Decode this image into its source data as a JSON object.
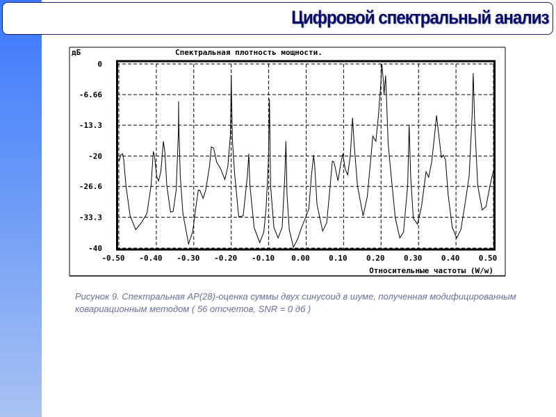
{
  "slide": {
    "title": "Цифровой спектральный анализ",
    "caption": "Рисунок 9. Спектральная АР(28)-оценка суммы двух синусоид в шуме, полученная модифицированным ковариационным методом ( 56 отсчетов, SNR = 0 дб )",
    "colors": {
      "title": "#0b0b6e",
      "stripe_top": "#3b78fc",
      "stripe_bottom": "#a9c2f2",
      "caption": "#6a6f9e"
    }
  },
  "chart_data": {
    "type": "line",
    "title": "Спектральная плотность мощности.",
    "ylabel": "дБ",
    "xlabel": "Относительные частоты (W/w)",
    "xlim": [
      -0.5,
      0.5
    ],
    "ylim": [
      -40,
      0
    ],
    "grid": true,
    "x_ticks": [
      "-0.50",
      "-0.40",
      "-0.30",
      "-0.20",
      "-0.10",
      "0.00",
      "0.10",
      "0.20",
      "0.30",
      "0.40",
      "0.50"
    ],
    "y_ticks": [
      "0",
      "-6.66",
      "-13.3",
      "-20",
      "-26.6",
      "-33.3",
      "-40"
    ],
    "y_tick_values": [
      0,
      -6.66,
      -13.3,
      -20,
      -26.6,
      -33.3,
      -40
    ],
    "series": [
      {
        "x": [
          -0.499,
          -0.495,
          -0.49,
          -0.487,
          -0.481,
          -0.47,
          -0.455,
          -0.44,
          -0.425,
          -0.414,
          -0.408,
          -0.405,
          -0.399,
          -0.394,
          -0.388,
          -0.381,
          -0.377,
          -0.372,
          -0.362,
          -0.355,
          -0.347,
          -0.341,
          -0.3405,
          -0.34,
          -0.336,
          -0.329,
          -0.314,
          -0.303,
          -0.295,
          -0.288,
          -0.284,
          -0.275,
          -0.268,
          -0.258,
          -0.253,
          -0.247,
          -0.239,
          -0.228,
          -0.217,
          -0.209,
          -0.202,
          -0.2,
          -0.197,
          -0.191,
          -0.18,
          -0.168,
          -0.157,
          -0.153,
          -0.15,
          -0.139,
          -0.124,
          -0.113,
          -0.107,
          -0.101,
          -0.098,
          -0.095,
          -0.086,
          -0.075,
          -0.064,
          -0.057,
          -0.054,
          -0.051,
          -0.045,
          -0.034,
          -0.023,
          -0.012,
          -0.001,
          0.007,
          0.014,
          0.02,
          0.023,
          0.029,
          0.044,
          0.055,
          0.063,
          0.07,
          0.074,
          0.077,
          0.085,
          0.092,
          0.098,
          0.104,
          0.111,
          0.118,
          0.124,
          0.128,
          0.137,
          0.152,
          0.163,
          0.174,
          0.178,
          0.186,
          0.193,
          0.199,
          0.202,
          0.206,
          0.208,
          0.212,
          0.215,
          0.219,
          0.227,
          0.238,
          0.25,
          0.26,
          0.271,
          0.275,
          0.279,
          0.286,
          0.297,
          0.308,
          0.32,
          0.327,
          0.335,
          0.342,
          0.348,
          0.353,
          0.361,
          0.366,
          0.372,
          0.379,
          0.39,
          0.402,
          0.413,
          0.424,
          0.435,
          0.443,
          0.446,
          0.45,
          0.458,
          0.47,
          0.48,
          0.491,
          0.5
        ],
        "y": [
          -21.1,
          -19.8,
          -19.5,
          -20.8,
          -26.4,
          -33.0,
          -36.0,
          -34.5,
          -32.5,
          -26.4,
          -19.0,
          -19.8,
          -24.4,
          -25.4,
          -23.4,
          -16.8,
          -19.3,
          -26.4,
          -32.2,
          -32.0,
          -27.4,
          -14.7,
          -8.1,
          -12.7,
          -24.4,
          -32.5,
          -39.1,
          -36.5,
          -31.5,
          -27.4,
          -27.4,
          -29.2,
          -27.4,
          -22.3,
          -18.0,
          -18.3,
          -21.3,
          -22.8,
          -25.1,
          -22.3,
          -15.2,
          -2.5,
          -16.2,
          -23.9,
          -33.2,
          -33.0,
          -24.4,
          -19.5,
          -26.4,
          -35.5,
          -38.8,
          -36.5,
          -31.5,
          -21.3,
          -7.6,
          -26.4,
          -35.5,
          -37.8,
          -35.5,
          -24.4,
          -16.8,
          -28.4,
          -36.0,
          -39.8,
          -38.1,
          -35.5,
          -33.2,
          -31.5,
          -24.4,
          -19.8,
          -22.3,
          -30.5,
          -36.3,
          -34.5,
          -27.4,
          -21.1,
          -21.3,
          -22.3,
          -25.4,
          -21.8,
          -19.5,
          -22.8,
          -24.1,
          -19.8,
          -11.7,
          -17.3,
          -26.4,
          -33.0,
          -28.9,
          -19.3,
          -15.7,
          -16.8,
          -11.2,
          -4.6,
          0.0,
          -3.6,
          -6.6,
          -2.5,
          -8.6,
          -17.3,
          -24.4,
          -33.5,
          -37.8,
          -36.5,
          -26.4,
          -13.2,
          -24.4,
          -33.5,
          -34.8,
          -31.0,
          -23.4,
          -24.6,
          -21.3,
          -16.2,
          -11.2,
          -14.7,
          -20.3,
          -19.8,
          -20.8,
          -28.4,
          -35.5,
          -37.8,
          -36.0,
          -30.5,
          -24.4,
          -11.2,
          -2.0,
          -12.7,
          -26.4,
          -31.7,
          -31.0,
          -26.4,
          -23.1
        ]
      }
    ]
  }
}
